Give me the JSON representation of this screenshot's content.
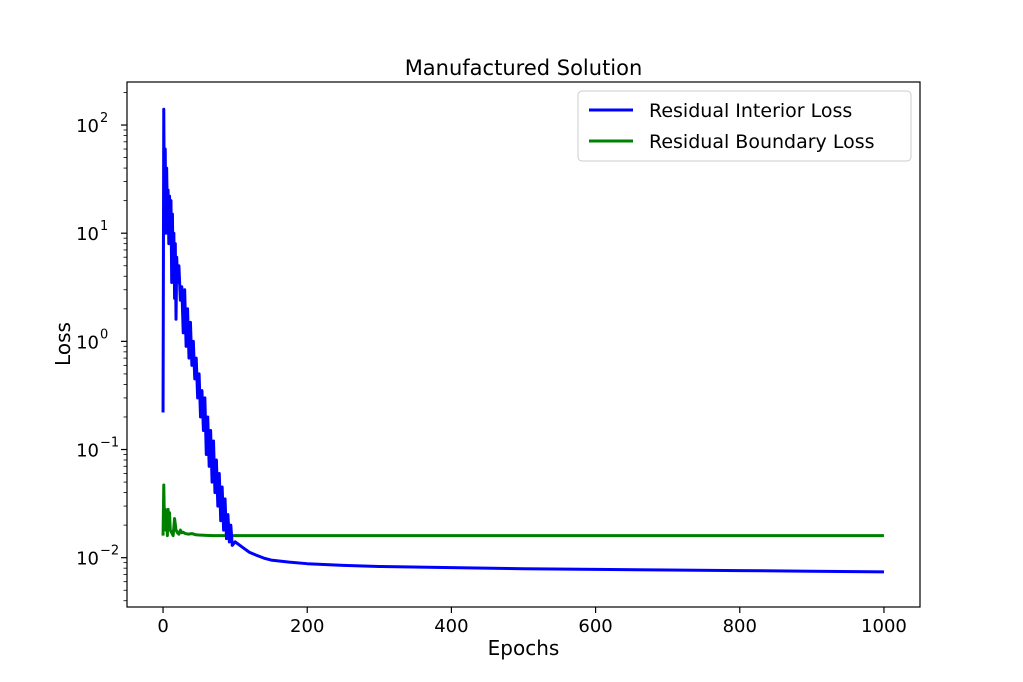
{
  "chart_data": {
    "type": "line",
    "title": "Manufactured Solution",
    "xlabel": "Epochs",
    "ylabel": "Loss",
    "xlim": [
      -50,
      1050
    ],
    "xticks": [
      0,
      200,
      400,
      600,
      800,
      1000
    ],
    "xtick_labels": [
      "0",
      "200",
      "400",
      "600",
      "800",
      "1000"
    ],
    "yscale": "log",
    "ylim": [
      0.0035,
      250
    ],
    "yticks": [
      {
        "value": 0.01,
        "base": "10",
        "exp": "−2"
      },
      {
        "value": 0.1,
        "base": "10",
        "exp": "−1"
      },
      {
        "value": 1,
        "base": "10",
        "exp": "0"
      },
      {
        "value": 10,
        "base": "10",
        "exp": "1"
      },
      {
        "value": 100,
        "base": "10",
        "exp": "2"
      }
    ],
    "grid": false,
    "legend_position": "upper right",
    "series": [
      {
        "name": "Residual Interior Loss",
        "color": "#0000ff",
        "x": [
          0,
          1,
          2,
          3,
          4,
          5,
          6,
          7,
          8,
          9,
          10,
          11,
          12,
          13,
          14,
          15,
          16,
          17,
          18,
          19,
          20,
          22,
          24,
          26,
          28,
          30,
          32,
          34,
          36,
          38,
          40,
          42,
          44,
          46,
          48,
          50,
          52,
          54,
          56,
          58,
          60,
          62,
          64,
          66,
          68,
          70,
          72,
          74,
          76,
          78,
          80,
          82,
          84,
          86,
          88,
          90,
          92,
          94,
          96,
          100,
          110,
          120,
          130,
          140,
          150,
          175,
          200,
          250,
          300,
          400,
          500,
          600,
          700,
          800,
          900,
          1000
        ],
        "y": [
          0.22,
          140,
          12,
          60,
          10,
          40,
          15,
          25,
          8,
          22,
          12,
          20,
          3.5,
          15,
          4,
          10,
          2.5,
          8,
          1.6,
          6,
          3.5,
          5,
          2.4,
          3.2,
          1.2,
          3,
          0.9,
          2,
          0.7,
          1.5,
          0.6,
          1,
          0.45,
          0.7,
          0.3,
          0.5,
          0.2,
          0.35,
          0.15,
          0.3,
          0.09,
          0.2,
          0.07,
          0.15,
          0.05,
          0.12,
          0.04,
          0.08,
          0.03,
          0.06,
          0.022,
          0.045,
          0.018,
          0.035,
          0.015,
          0.025,
          0.014,
          0.02,
          0.013,
          0.014,
          0.0125,
          0.0112,
          0.0105,
          0.0099,
          0.0095,
          0.0091,
          0.0088,
          0.0085,
          0.0083,
          0.0081,
          0.0079,
          0.0078,
          0.0077,
          0.0076,
          0.0075,
          0.0074
        ]
      },
      {
        "name": "Residual Boundary Loss",
        "color": "#008000",
        "x": [
          0,
          1,
          2,
          3,
          4,
          5,
          6,
          7,
          8,
          9,
          10,
          12,
          14,
          16,
          18,
          20,
          22,
          24,
          26,
          28,
          30,
          35,
          40,
          45,
          50,
          60,
          70,
          80,
          100,
          200,
          400,
          600,
          800,
          1000
        ],
        "y": [
          0.016,
          0.047,
          0.02,
          0.028,
          0.018,
          0.022,
          0.016,
          0.028,
          0.019,
          0.026,
          0.018,
          0.017,
          0.016,
          0.023,
          0.018,
          0.017,
          0.0165,
          0.018,
          0.017,
          0.0172,
          0.0168,
          0.0165,
          0.0167,
          0.0163,
          0.0162,
          0.0161,
          0.016,
          0.016,
          0.016,
          0.016,
          0.016,
          0.016,
          0.016,
          0.016
        ]
      }
    ]
  }
}
